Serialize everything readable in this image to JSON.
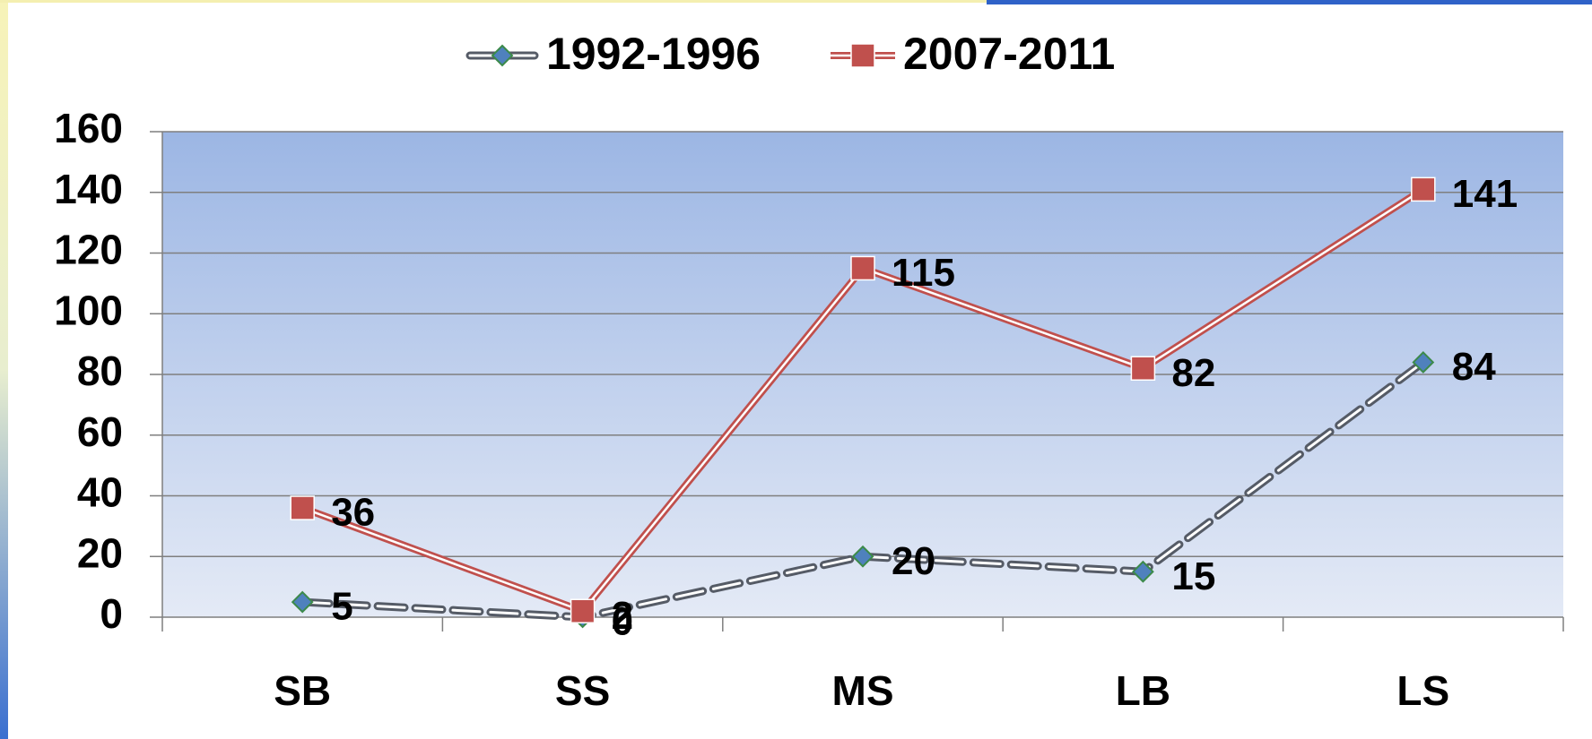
{
  "chart_data": {
    "type": "line",
    "categories": [
      "SB",
      "SS",
      "MS",
      "LB",
      "LS"
    ],
    "series": [
      {
        "name": "1992-1996",
        "color": "#4f81bd",
        "values": [
          5,
          0,
          20,
          15,
          84
        ]
      },
      {
        "name": "2007-2011",
        "color": "#c0504d",
        "values": [
          36,
          2,
          115,
          82,
          141
        ]
      }
    ],
    "ylim": [
      0,
      160
    ],
    "yticks": [
      0,
      20,
      40,
      60,
      80,
      100,
      120,
      140,
      160
    ],
    "grid": true
  }
}
